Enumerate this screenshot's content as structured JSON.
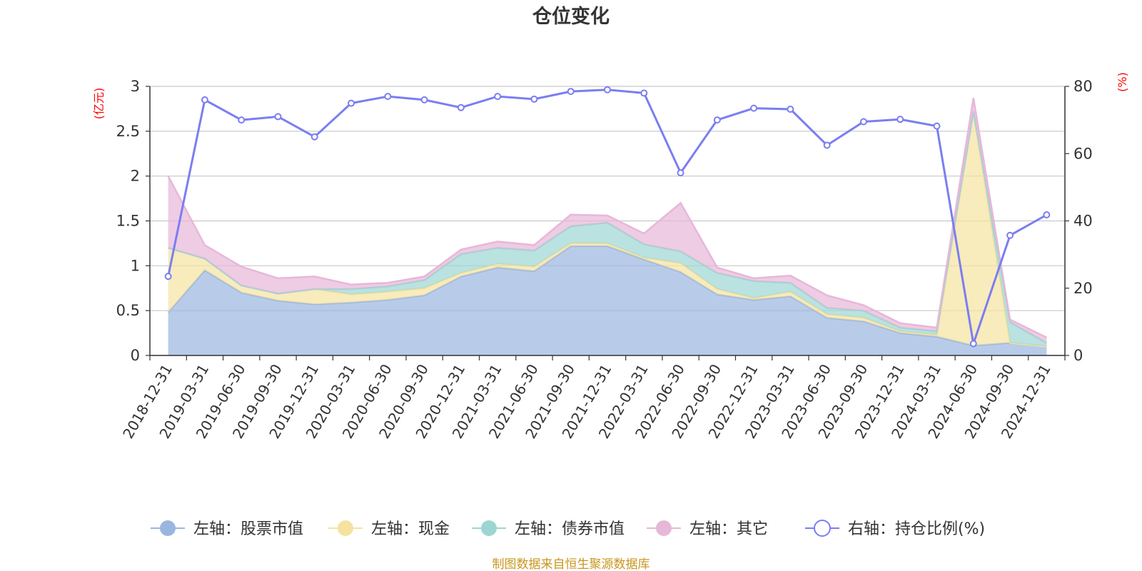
{
  "chart_data": {
    "type": "area",
    "title": "仓位变化",
    "left_unit": "(亿元)",
    "right_unit": "(%)",
    "categories": [
      "2018-12-31",
      "2019-03-31",
      "2019-06-30",
      "2019-09-30",
      "2019-12-31",
      "2020-03-31",
      "2020-06-30",
      "2020-09-30",
      "2020-12-31",
      "2021-03-31",
      "2021-06-30",
      "2021-09-30",
      "2021-12-31",
      "2022-03-31",
      "2022-06-30",
      "2022-09-30",
      "2022-12-31",
      "2023-03-31",
      "2023-06-30",
      "2023-09-30",
      "2023-12-31",
      "2024-03-31",
      "2024-06-30",
      "2024-09-30",
      "2024-12-31"
    ],
    "left_axis": {
      "min": 0,
      "max": 3,
      "ticks": [
        "0",
        "0.5",
        "1",
        "1.5",
        "2",
        "2.5",
        "3"
      ],
      "tick_values": [
        0,
        0.5,
        1,
        1.5,
        2,
        2.5,
        3
      ]
    },
    "right_axis": {
      "min": 0,
      "max": 80,
      "ticks": [
        "0",
        "20",
        "40",
        "60",
        "80"
      ],
      "tick_values": [
        0,
        20,
        40,
        60,
        80
      ]
    },
    "stacked_series": [
      {
        "name": "左轴：股票市值",
        "color": "#9ab6e0",
        "values": [
          0.48,
          0.95,
          0.7,
          0.61,
          0.57,
          0.59,
          0.62,
          0.67,
          0.88,
          0.98,
          0.94,
          1.22,
          1.22,
          1.07,
          0.93,
          0.68,
          0.62,
          0.66,
          0.42,
          0.38,
          0.25,
          0.21,
          0.11,
          0.14,
          0.1
        ]
      },
      {
        "name": "左轴：现金",
        "color": "#f5e2a0",
        "values": [
          0.72,
          0.13,
          0.08,
          0.08,
          0.17,
          0.09,
          0.09,
          0.08,
          0.04,
          0.04,
          0.05,
          0.03,
          0.03,
          0.02,
          0.1,
          0.06,
          0.02,
          0.05,
          0.04,
          0.04,
          0.02,
          0.02,
          2.6,
          0.0,
          0.0
        ]
      },
      {
        "name": "左轴：债券市值",
        "color": "#9dd5d3",
        "values": [
          0,
          0,
          0,
          0,
          0.0,
          0.06,
          0.06,
          0.09,
          0.21,
          0.18,
          0.18,
          0.19,
          0.23,
          0.15,
          0.13,
          0.18,
          0.19,
          0.1,
          0.07,
          0.08,
          0.04,
          0.04,
          0.01,
          0.23,
          0.04
        ]
      },
      {
        "name": "左轴：其它",
        "color": "#e7b7d8",
        "values": [
          0.8,
          0.15,
          0.21,
          0.17,
          0.14,
          0.05,
          0.04,
          0.04,
          0.05,
          0.07,
          0.06,
          0.13,
          0.08,
          0.12,
          0.54,
          0.06,
          0.03,
          0.08,
          0.14,
          0.06,
          0.05,
          0.04,
          0.15,
          0.03,
          0.06
        ]
      }
    ],
    "line_series": {
      "name": "右轴：持仓比例(%)",
      "color": "#7b7ef0",
      "values": [
        23.5,
        76,
        70,
        71,
        65,
        75,
        77,
        76,
        73.7,
        77,
        76.2,
        78.5,
        79,
        78,
        54.3,
        70,
        73.5,
        73.2,
        62.5,
        69.5,
        70.2,
        68.2,
        3.5,
        35.7,
        41.8
      ]
    },
    "source": "制图数据来自恒生聚源数据库"
  }
}
